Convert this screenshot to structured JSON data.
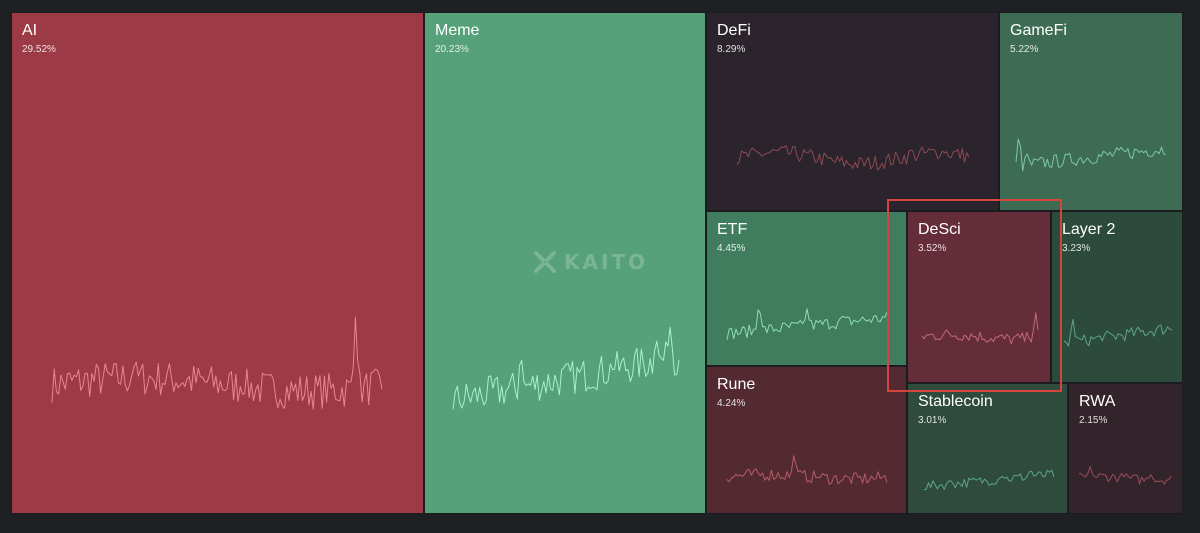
{
  "chart_data": {
    "type": "treemap",
    "title": "",
    "watermark": "KAITO",
    "categories": [
      {
        "name": "AI",
        "share": "29.52%",
        "value": 29.52,
        "trend": "down",
        "color": "#9c3a46",
        "line_color": "#e8868f"
      },
      {
        "name": "Meme",
        "share": "20.23%",
        "value": 20.23,
        "trend": "up",
        "color": "#56a07a",
        "line_color": "#a8f0cc"
      },
      {
        "name": "DeFi",
        "share": "8.29%",
        "value": 8.29,
        "trend": "flat",
        "color": "#2c242c",
        "line_color": "#8a4a52"
      },
      {
        "name": "GameFi",
        "share": "5.22%",
        "value": 5.22,
        "trend": "up",
        "color": "#3d6b54",
        "line_color": "#7ccaa4"
      },
      {
        "name": "ETF",
        "share": "4.45%",
        "value": 4.45,
        "trend": "up",
        "color": "#3f7d5e",
        "line_color": "#8fdcb4"
      },
      {
        "name": "DeSci",
        "share": "3.52%",
        "value": 3.52,
        "trend": "down",
        "color": "#652c3a",
        "line_color": "#c26a76"
      },
      {
        "name": "Layer 2",
        "share": "3.23%",
        "value": 3.23,
        "trend": "up",
        "color": "#2d4b3d",
        "line_color": "#5da582"
      },
      {
        "name": "Rune",
        "share": "4.24%",
        "value": 4.24,
        "trend": "down",
        "color": "#532a32",
        "line_color": "#b55c68"
      },
      {
        "name": "Stablecoin",
        "share": "3.01%",
        "value": 3.01,
        "trend": "up",
        "color": "#2e4b3e",
        "line_color": "#5ea584"
      },
      {
        "name": "RWA",
        "share": "2.15%",
        "value": 2.15,
        "trend": "down",
        "color": "#33242b",
        "line_color": "#9a4d58"
      }
    ],
    "highlighted": "DeSci"
  }
}
